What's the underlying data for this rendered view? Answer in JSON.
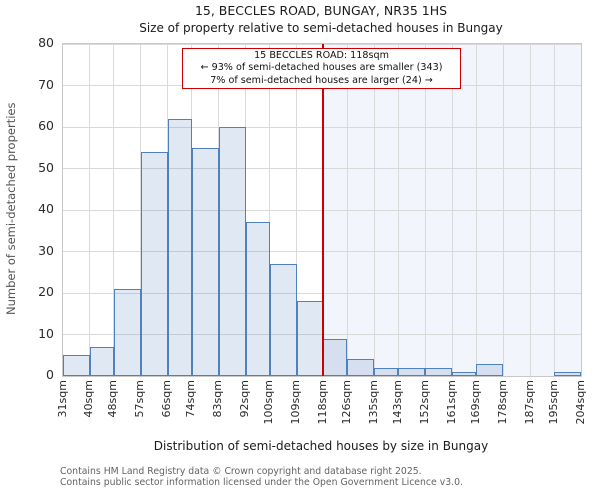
{
  "header": {
    "title": "15, BECCLES ROAD, BUNGAY, NR35 1HS",
    "subtitle": "Size of property relative to semi-detached houses in Bungay"
  },
  "annotation": {
    "line1": "15 BECCLES ROAD: 118sqm",
    "line2": "← 93% of semi-detached houses are smaller (343)",
    "line3": "7% of semi-detached houses are larger (24) →"
  },
  "chart_data": {
    "type": "bar",
    "title": "15, BECCLES ROAD, BUNGAY, NR35 1HS — Size of property relative to semi-detached houses in Bungay",
    "xlabel": "Distribution of semi-detached houses by size in Bungay",
    "ylabel": "Number of semi-detached properties",
    "bin_edges_sqm": [
      31,
      40,
      48,
      57,
      66,
      74,
      83,
      92,
      100,
      109,
      118,
      126,
      135,
      143,
      152,
      161,
      169,
      178,
      187,
      195,
      204
    ],
    "x_tick_labels": [
      "31sqm",
      "40sqm",
      "48sqm",
      "57sqm",
      "66sqm",
      "74sqm",
      "83sqm",
      "92sqm",
      "100sqm",
      "109sqm",
      "118sqm",
      "126sqm",
      "135sqm",
      "143sqm",
      "152sqm",
      "161sqm",
      "169sqm",
      "178sqm",
      "187sqm",
      "195sqm",
      "204sqm"
    ],
    "values": [
      5,
      7,
      21,
      54,
      62,
      55,
      60,
      37,
      27,
      18,
      9,
      4,
      2,
      2,
      2,
      1,
      3,
      0,
      0,
      1
    ],
    "ylim": [
      0,
      80
    ],
    "y_ticks": [
      0,
      10,
      20,
      30,
      40,
      50,
      60,
      70,
      80
    ],
    "grid": true,
    "legend": "none",
    "marker_value_sqm": 118,
    "colors": {
      "bar_fill": "rgba(79,129,189,0.18)",
      "bar_edge": "#4f81bd",
      "marker_line": "#cc0000",
      "annotation_border": "#cc0000",
      "gridline": "#d9d9d9",
      "shaded_region": "#f3f5fc"
    }
  },
  "footer": {
    "line1": "Contains HM Land Registry data © Crown copyright and database right 2025.",
    "line2": "Contains public sector information licensed under the Open Government Licence v3.0."
  }
}
